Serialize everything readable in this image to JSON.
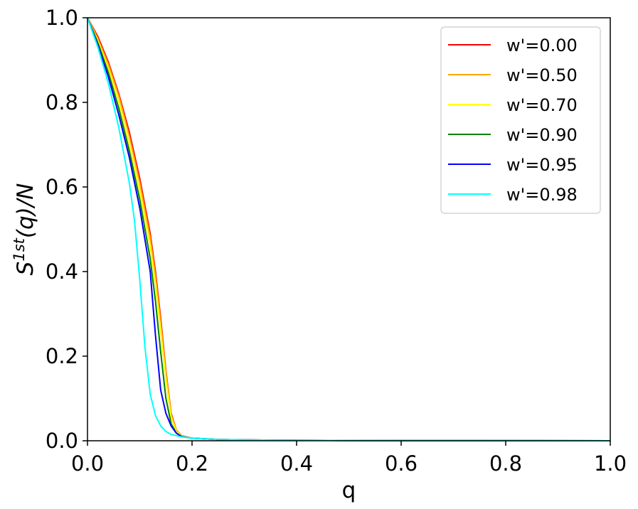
{
  "chart_data": {
    "type": "line",
    "title": "",
    "xlabel": "q",
    "ylabel_main": "S",
    "ylabel_sup": "1st",
    "ylabel_rest": "(q)/N",
    "xlim": [
      0.0,
      1.0
    ],
    "ylim": [
      0.0,
      1.0
    ],
    "xticks": [
      "0.0",
      "0.2",
      "0.4",
      "0.6",
      "0.8",
      "1.0"
    ],
    "yticks": [
      "0.0",
      "0.2",
      "0.4",
      "0.6",
      "0.8",
      "1.0"
    ],
    "grid": false,
    "legend_position": "top-right",
    "series": [
      {
        "name": "w'=0.00",
        "color": "#ff0000",
        "x": [
          0,
          0.02,
          0.04,
          0.06,
          0.08,
          0.1,
          0.12,
          0.13,
          0.14,
          0.15,
          0.16,
          0.17,
          0.18,
          0.2,
          0.25,
          0.3,
          0.4,
          0.6,
          1.0
        ],
        "y": [
          1.0,
          0.955,
          0.895,
          0.82,
          0.73,
          0.62,
          0.49,
          0.4,
          0.29,
          0.165,
          0.065,
          0.025,
          0.012,
          0.006,
          0.003,
          0.002,
          0.001,
          0.0005,
          0.0
        ]
      },
      {
        "name": "w'=0.50",
        "color": "#ffa500",
        "x": [
          0,
          0.02,
          0.04,
          0.06,
          0.08,
          0.1,
          0.12,
          0.13,
          0.14,
          0.15,
          0.16,
          0.17,
          0.18,
          0.2,
          0.25,
          0.3,
          0.4,
          0.6,
          1.0
        ],
        "y": [
          1.0,
          0.95,
          0.89,
          0.815,
          0.72,
          0.61,
          0.48,
          0.39,
          0.28,
          0.16,
          0.062,
          0.024,
          0.012,
          0.006,
          0.003,
          0.002,
          0.001,
          0.0005,
          0.0
        ]
      },
      {
        "name": "w'=0.70",
        "color": "#ffff00",
        "x": [
          0,
          0.02,
          0.04,
          0.06,
          0.08,
          0.1,
          0.12,
          0.13,
          0.14,
          0.15,
          0.16,
          0.17,
          0.18,
          0.2,
          0.25,
          0.3,
          0.4,
          0.6,
          1.0
        ],
        "y": [
          1.0,
          0.945,
          0.88,
          0.8,
          0.7,
          0.59,
          0.46,
          0.37,
          0.26,
          0.145,
          0.055,
          0.022,
          0.011,
          0.006,
          0.003,
          0.002,
          0.001,
          0.0005,
          0.0
        ]
      },
      {
        "name": "w'=0.90",
        "color": "#008000",
        "x": [
          0,
          0.02,
          0.04,
          0.06,
          0.08,
          0.1,
          0.12,
          0.13,
          0.14,
          0.15,
          0.16,
          0.17,
          0.18,
          0.2,
          0.25,
          0.3,
          0.4,
          0.6,
          1.0
        ],
        "y": [
          1.0,
          0.94,
          0.87,
          0.785,
          0.685,
          0.57,
          0.43,
          0.33,
          0.21,
          0.1,
          0.04,
          0.018,
          0.01,
          0.006,
          0.003,
          0.002,
          0.001,
          0.0005,
          0.0
        ]
      },
      {
        "name": "w'=0.95",
        "color": "#0000ff",
        "x": [
          0,
          0.02,
          0.04,
          0.06,
          0.08,
          0.1,
          0.12,
          0.13,
          0.14,
          0.15,
          0.16,
          0.17,
          0.18,
          0.2,
          0.25,
          0.3,
          0.4,
          0.6,
          1.0
        ],
        "y": [
          1.0,
          0.935,
          0.86,
          0.77,
          0.67,
          0.55,
          0.4,
          0.25,
          0.12,
          0.065,
          0.035,
          0.018,
          0.01,
          0.006,
          0.003,
          0.002,
          0.001,
          0.0005,
          0.0
        ]
      },
      {
        "name": "w'=0.98",
        "color": "#00ffff",
        "x": [
          0,
          0.02,
          0.04,
          0.06,
          0.08,
          0.09,
          0.1,
          0.11,
          0.12,
          0.13,
          0.14,
          0.15,
          0.16,
          0.18,
          0.2,
          0.25,
          0.3,
          0.4,
          0.6,
          1.0
        ],
        "y": [
          1.0,
          0.93,
          0.845,
          0.74,
          0.61,
          0.52,
          0.38,
          0.22,
          0.11,
          0.06,
          0.035,
          0.022,
          0.015,
          0.009,
          0.006,
          0.003,
          0.002,
          0.001,
          0.0005,
          0.0
        ]
      }
    ]
  }
}
